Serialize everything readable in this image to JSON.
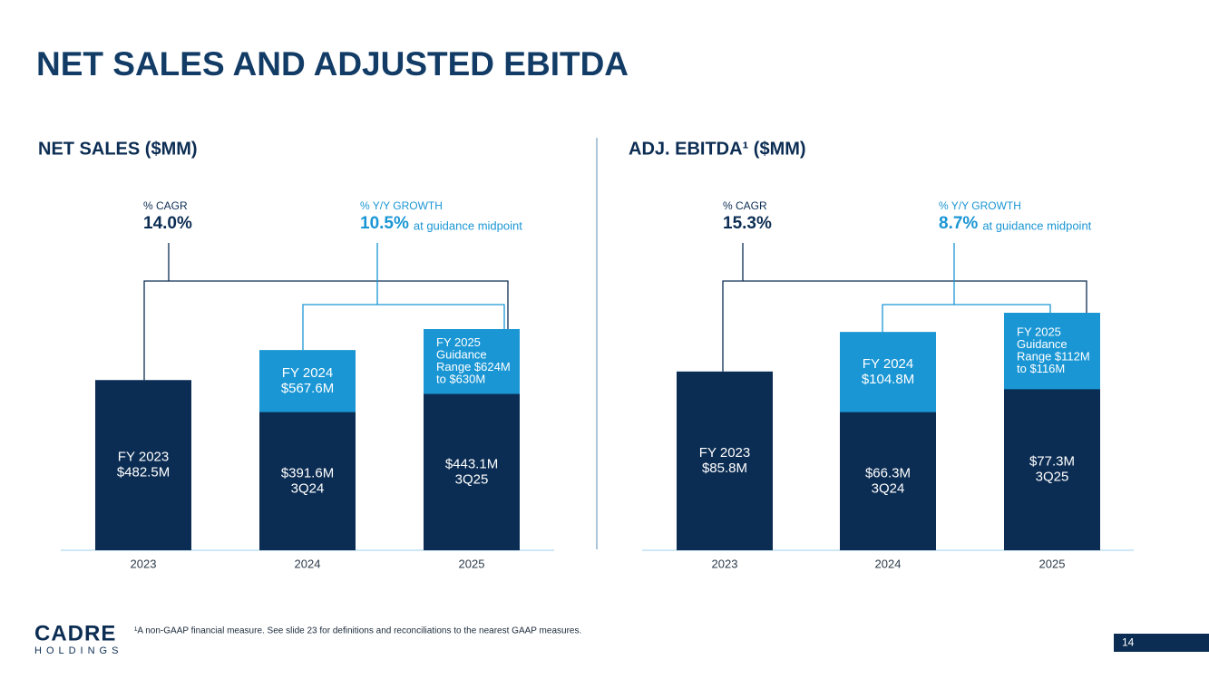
{
  "title": "NET SALES AND ADJUSTED EBITDA",
  "chart_data": [
    {
      "type": "bar",
      "title": "NET SALES ($MM)",
      "categories": [
        "2023",
        "2024",
        "2025"
      ],
      "series": [
        {
          "colors": [
            "#0c2d53",
            "#1a96d4",
            "#1a96d4"
          ],
          "values": [
            482.5,
            567.6,
            627
          ],
          "value_labels": [
            [
              "FY 2023",
              "$482.5M"
            ],
            [
              "FY 2024",
              "$567.6M"
            ],
            [
              "FY 2025",
              "Guidance",
              "Range $624M",
              "to $630M"
            ]
          ]
        },
        {
          "color": "#0c2d53",
          "values": [
            null,
            391.6,
            443.1
          ],
          "value_labels": [
            null,
            [
              "$391.6M",
              "3Q24"
            ],
            [
              "$443.1M",
              "3Q25"
            ]
          ]
        }
      ],
      "annotations": [
        {
          "label": "% CAGR",
          "value": "14.0%"
        },
        {
          "label": "% Y/Y GROWTH",
          "value": "10.5%",
          "note": "at guidance midpoint"
        }
      ]
    },
    {
      "type": "bar",
      "title": "ADJ. EBITDA¹ ($MM)",
      "categories": [
        "2023",
        "2024",
        "2025"
      ],
      "series": [
        {
          "colors": [
            "#0c2d53",
            "#1a96d4",
            "#1a96d4"
          ],
          "values": [
            85.8,
            104.8,
            114
          ],
          "value_labels": [
            [
              "FY 2023",
              "$85.8M"
            ],
            [
              "FY 2024",
              "$104.8M"
            ],
            [
              "FY 2025",
              "Guidance",
              "Range $112M",
              "to $116M"
            ]
          ]
        },
        {
          "color": "#0c2d53",
          "values": [
            null,
            66.3,
            77.3
          ],
          "value_labels": [
            null,
            [
              "$66.3M",
              "3Q24"
            ],
            [
              "$77.3M",
              "3Q25"
            ]
          ]
        }
      ],
      "annotations": [
        {
          "label": "% CAGR",
          "value": "15.3%"
        },
        {
          "label": "% Y/Y GROWTH",
          "value": "8.7%",
          "note": "at guidance midpoint"
        }
      ]
    }
  ],
  "footnote": "¹A non-GAAP financial measure. See slide 23 for definitions and reconciliations to the nearest GAAP measures.",
  "logo": {
    "name": "CADRE",
    "subtitle": "HOLDINGS"
  },
  "page_number": "14"
}
